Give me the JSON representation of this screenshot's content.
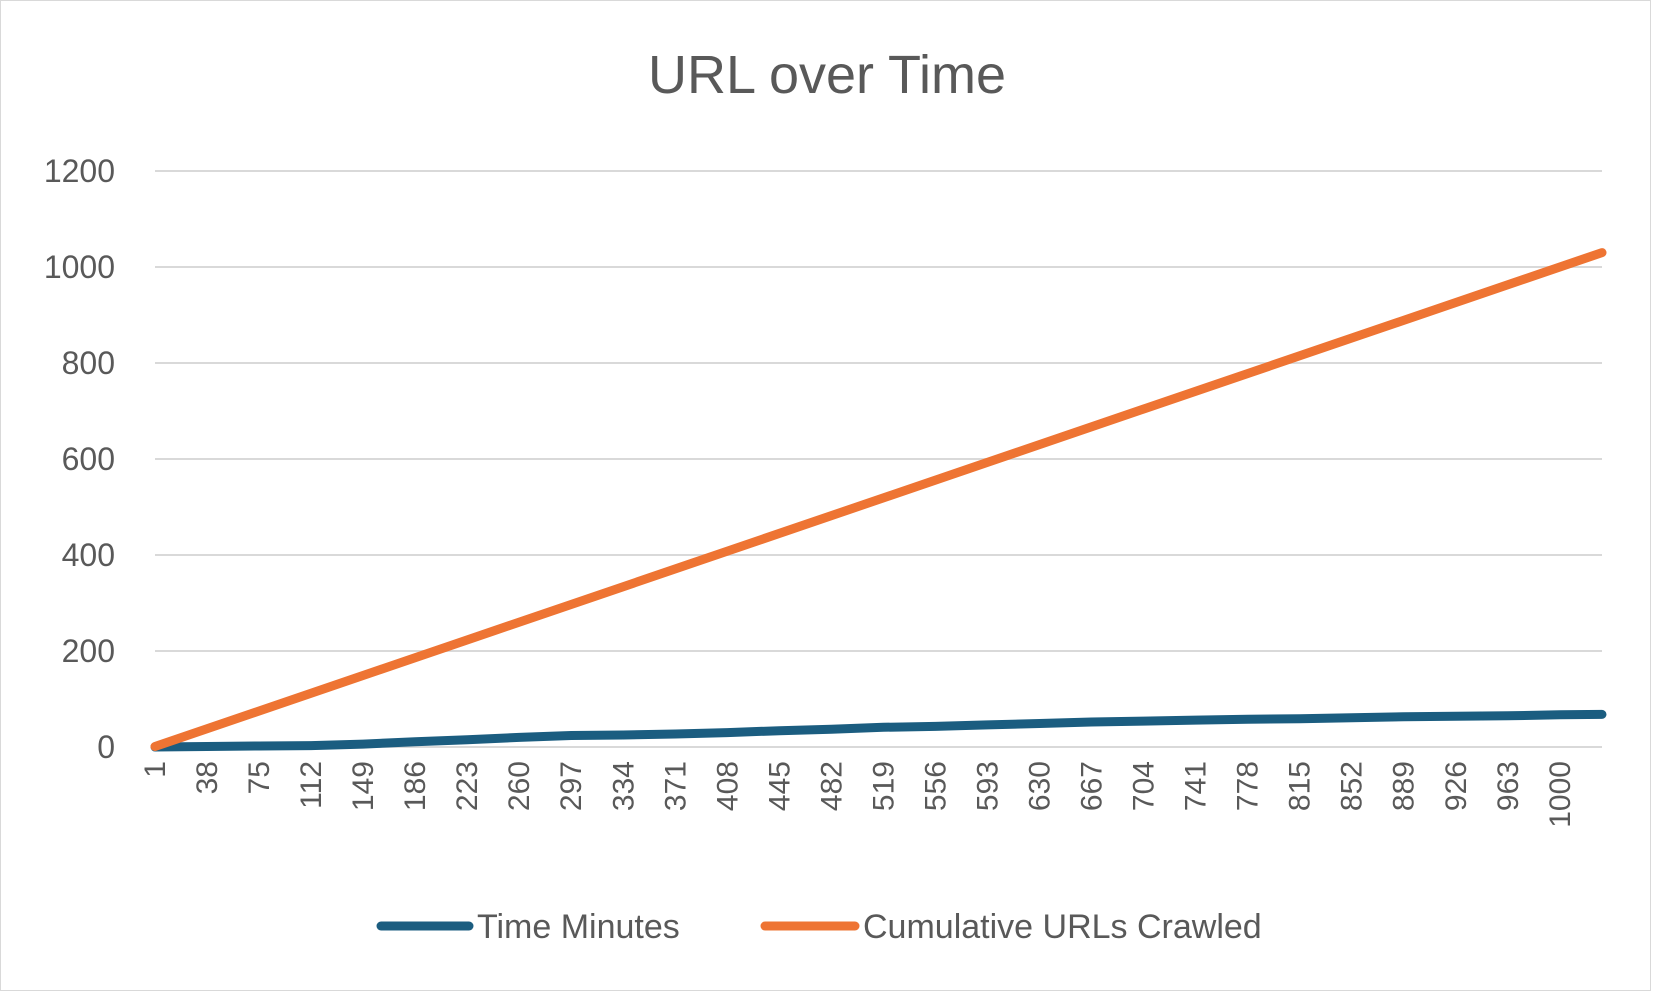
{
  "chart_data": {
    "type": "line",
    "title": "URL over Time",
    "xlabel": "",
    "ylabel": "",
    "ylim": [
      0,
      1200
    ],
    "yticks": [
      0,
      200,
      400,
      600,
      800,
      1000,
      1200
    ],
    "x_categories_shown": [
      "1",
      "38",
      "75",
      "112",
      "149",
      "186",
      "223",
      "260",
      "297",
      "334",
      "371",
      "408",
      "445",
      "482",
      "519",
      "556",
      "593",
      "630",
      "667",
      "704",
      "741",
      "778",
      "815",
      "852",
      "889",
      "926",
      "963",
      "1000"
    ],
    "x_range": [
      1,
      1030
    ],
    "grid": true,
    "legend_position": "bottom",
    "series": [
      {
        "name": "Time Minutes",
        "color": "#1b5d80",
        "x": [
          1,
          38,
          75,
          112,
          149,
          186,
          223,
          260,
          297,
          334,
          371,
          408,
          445,
          482,
          519,
          556,
          593,
          630,
          667,
          704,
          741,
          778,
          815,
          852,
          889,
          926,
          963,
          1000,
          1030
        ],
        "values": [
          0,
          1,
          2,
          3,
          6,
          11,
          15,
          20,
          24,
          25,
          27,
          30,
          34,
          37,
          41,
          43,
          46,
          49,
          52,
          54,
          56,
          58,
          59,
          61,
          63,
          64,
          65,
          67,
          68
        ]
      },
      {
        "name": "Cumulative URLs Crawled",
        "color": "#ee7433",
        "x": [
          1,
          1030
        ],
        "values": [
          1,
          1030
        ]
      }
    ]
  }
}
